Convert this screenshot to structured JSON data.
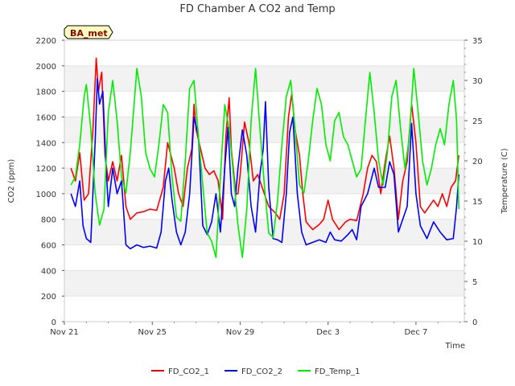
{
  "chart_data": {
    "type": "line",
    "title": "FD Chamber A CO2 and Temp",
    "xlabel": "Time",
    "ylabel_left": "CO2 (ppm)",
    "ylabel_right": "Temperature (C)",
    "site_label": "BA_met",
    "x_range_days": [
      0,
      18.2
    ],
    "x_ticks": [
      {
        "label": "Nov 21",
        "day": 0
      },
      {
        "label": "Nov 25",
        "day": 4
      },
      {
        "label": "Nov 29",
        "day": 8
      },
      {
        "label": "Dec 3",
        "day": 12
      },
      {
        "label": "Dec 7",
        "day": 16
      }
    ],
    "y_left_range": [
      0,
      2200
    ],
    "y_left_ticks": [
      0,
      200,
      400,
      600,
      800,
      1000,
      1200,
      1400,
      1600,
      1800,
      2000,
      2200
    ],
    "y_right_range": [
      0,
      35
    ],
    "y_right_ticks": [
      0,
      5,
      10,
      15,
      20,
      25,
      30,
      35
    ],
    "grid_bands": true,
    "legend_position": "bottom",
    "series": [
      {
        "name": "FD_CO2_1",
        "axis": "left",
        "color": "#ff0000",
        "points": [
          [
            0.3,
            1200
          ],
          [
            0.5,
            1100
          ],
          [
            0.7,
            1320
          ],
          [
            0.9,
            950
          ],
          [
            1.1,
            1000
          ],
          [
            1.3,
            1500
          ],
          [
            1.45,
            2060
          ],
          [
            1.55,
            1800
          ],
          [
            1.7,
            1950
          ],
          [
            1.85,
            1300
          ],
          [
            2.0,
            1100
          ],
          [
            2.2,
            1250
          ],
          [
            2.4,
            1100
          ],
          [
            2.6,
            1300
          ],
          [
            2.8,
            900
          ],
          [
            3.0,
            800
          ],
          [
            3.3,
            850
          ],
          [
            3.6,
            860
          ],
          [
            3.9,
            880
          ],
          [
            4.2,
            870
          ],
          [
            4.5,
            1050
          ],
          [
            4.7,
            1400
          ],
          [
            4.85,
            1300
          ],
          [
            5.0,
            1200
          ],
          [
            5.2,
            1000
          ],
          [
            5.4,
            900
          ],
          [
            5.6,
            1200
          ],
          [
            5.8,
            1350
          ],
          [
            5.9,
            1700
          ],
          [
            6.0,
            1500
          ],
          [
            6.2,
            1350
          ],
          [
            6.4,
            1200
          ],
          [
            6.6,
            1150
          ],
          [
            6.8,
            1180
          ],
          [
            7.0,
            1100
          ],
          [
            7.2,
            800
          ],
          [
            7.35,
            1450
          ],
          [
            7.5,
            1750
          ],
          [
            7.6,
            1350
          ],
          [
            7.8,
            1000
          ],
          [
            7.9,
            1000
          ],
          [
            8.0,
            1150
          ],
          [
            8.2,
            1560
          ],
          [
            8.4,
            1400
          ],
          [
            8.6,
            1100
          ],
          [
            8.8,
            1150
          ],
          [
            9.0,
            1050
          ],
          [
            9.3,
            900
          ],
          [
            9.6,
            850
          ],
          [
            9.8,
            800
          ],
          [
            10.0,
            1000
          ],
          [
            10.2,
            1600
          ],
          [
            10.35,
            1780
          ],
          [
            10.5,
            1500
          ],
          [
            10.7,
            1300
          ],
          [
            10.85,
            1000
          ],
          [
            11.0,
            780
          ],
          [
            11.3,
            720
          ],
          [
            11.6,
            760
          ],
          [
            11.8,
            800
          ],
          [
            12.0,
            950
          ],
          [
            12.2,
            800
          ],
          [
            12.5,
            720
          ],
          [
            12.8,
            780
          ],
          [
            13.0,
            800
          ],
          [
            13.3,
            790
          ],
          [
            13.6,
            1000
          ],
          [
            13.8,
            1200
          ],
          [
            14.0,
            1300
          ],
          [
            14.2,
            1250
          ],
          [
            14.4,
            1000
          ],
          [
            14.6,
            1250
          ],
          [
            14.8,
            1450
          ],
          [
            15.0,
            1200
          ],
          [
            15.2,
            800
          ],
          [
            15.4,
            1100
          ],
          [
            15.6,
            1250
          ],
          [
            15.8,
            1700
          ],
          [
            16.0,
            1400
          ],
          [
            16.2,
            900
          ],
          [
            16.4,
            850
          ],
          [
            16.6,
            900
          ],
          [
            16.8,
            950
          ],
          [
            17.0,
            900
          ],
          [
            17.2,
            1000
          ],
          [
            17.4,
            900
          ],
          [
            17.6,
            1050
          ],
          [
            17.8,
            1100
          ],
          [
            17.95,
            1300
          ]
        ]
      },
      {
        "name": "FD_CO2_2",
        "axis": "left",
        "color": "#0000ff",
        "points": [
          [
            0.3,
            1000
          ],
          [
            0.5,
            900
          ],
          [
            0.7,
            1100
          ],
          [
            0.85,
            750
          ],
          [
            1.0,
            650
          ],
          [
            1.2,
            620
          ],
          [
            1.4,
            1400
          ],
          [
            1.5,
            1900
          ],
          [
            1.6,
            1700
          ],
          [
            1.75,
            1800
          ],
          [
            1.9,
            1200
          ],
          [
            2.0,
            900
          ],
          [
            2.2,
            1200
          ],
          [
            2.4,
            1000
          ],
          [
            2.6,
            1100
          ],
          [
            2.8,
            600
          ],
          [
            3.0,
            570
          ],
          [
            3.3,
            600
          ],
          [
            3.6,
            580
          ],
          [
            3.9,
            590
          ],
          [
            4.2,
            575
          ],
          [
            4.4,
            700
          ],
          [
            4.6,
            1100
          ],
          [
            4.75,
            1200
          ],
          [
            4.9,
            950
          ],
          [
            5.1,
            700
          ],
          [
            5.3,
            600
          ],
          [
            5.5,
            700
          ],
          [
            5.7,
            1000
          ],
          [
            5.9,
            1600
          ],
          [
            6.1,
            1450
          ],
          [
            6.3,
            750
          ],
          [
            6.5,
            680
          ],
          [
            6.7,
            780
          ],
          [
            6.9,
            1000
          ],
          [
            7.1,
            700
          ],
          [
            7.3,
            1200
          ],
          [
            7.45,
            1520
          ],
          [
            7.6,
            1000
          ],
          [
            7.75,
            900
          ],
          [
            7.9,
            1200
          ],
          [
            8.1,
            1500
          ],
          [
            8.3,
            1300
          ],
          [
            8.5,
            900
          ],
          [
            8.7,
            700
          ],
          [
            8.9,
            1150
          ],
          [
            9.05,
            1350
          ],
          [
            9.15,
            1720
          ],
          [
            9.3,
            1050
          ],
          [
            9.5,
            650
          ],
          [
            9.7,
            640
          ],
          [
            9.9,
            620
          ],
          [
            10.1,
            1000
          ],
          [
            10.25,
            1480
          ],
          [
            10.4,
            1600
          ],
          [
            10.6,
            1000
          ],
          [
            10.8,
            700
          ],
          [
            11.0,
            600
          ],
          [
            11.3,
            620
          ],
          [
            11.6,
            640
          ],
          [
            11.9,
            620
          ],
          [
            12.1,
            700
          ],
          [
            12.3,
            640
          ],
          [
            12.6,
            630
          ],
          [
            12.9,
            680
          ],
          [
            13.1,
            720
          ],
          [
            13.3,
            640
          ],
          [
            13.5,
            900
          ],
          [
            13.8,
            1000
          ],
          [
            14.1,
            1200
          ],
          [
            14.3,
            1050
          ],
          [
            14.6,
            1050
          ],
          [
            14.8,
            1250
          ],
          [
            15.0,
            1150
          ],
          [
            15.2,
            700
          ],
          [
            15.4,
            800
          ],
          [
            15.6,
            900
          ],
          [
            15.8,
            1550
          ],
          [
            16.0,
            1000
          ],
          [
            16.2,
            750
          ],
          [
            16.5,
            650
          ],
          [
            16.8,
            780
          ],
          [
            17.1,
            700
          ],
          [
            17.4,
            640
          ],
          [
            17.7,
            650
          ],
          [
            17.85,
            900
          ],
          [
            17.95,
            1150
          ]
        ]
      },
      {
        "name": "FD_Temp_1",
        "axis": "right",
        "color": "#00ee00",
        "points": [
          [
            0.3,
            17
          ],
          [
            0.5,
            18
          ],
          [
            0.7,
            22
          ],
          [
            0.9,
            28
          ],
          [
            1.0,
            29.5
          ],
          [
            1.2,
            24
          ],
          [
            1.4,
            16
          ],
          [
            1.6,
            12
          ],
          [
            1.8,
            14
          ],
          [
            2.0,
            26
          ],
          [
            2.2,
            30
          ],
          [
            2.4,
            25
          ],
          [
            2.6,
            18
          ],
          [
            2.8,
            16
          ],
          [
            3.0,
            21
          ],
          [
            3.2,
            28
          ],
          [
            3.3,
            31.5
          ],
          [
            3.5,
            28
          ],
          [
            3.7,
            21
          ],
          [
            3.9,
            19
          ],
          [
            4.1,
            18
          ],
          [
            4.3,
            22
          ],
          [
            4.5,
            27
          ],
          [
            4.7,
            26
          ],
          [
            4.9,
            18
          ],
          [
            5.1,
            13
          ],
          [
            5.3,
            12.5
          ],
          [
            5.5,
            20
          ],
          [
            5.7,
            29
          ],
          [
            5.9,
            30
          ],
          [
            6.1,
            23
          ],
          [
            6.3,
            17
          ],
          [
            6.5,
            11
          ],
          [
            6.7,
            10
          ],
          [
            6.9,
            8
          ],
          [
            7.1,
            18
          ],
          [
            7.3,
            27
          ],
          [
            7.5,
            24
          ],
          [
            7.7,
            18
          ],
          [
            7.9,
            12
          ],
          [
            8.1,
            8
          ],
          [
            8.3,
            14
          ],
          [
            8.5,
            25
          ],
          [
            8.7,
            31.5
          ],
          [
            8.9,
            24
          ],
          [
            9.1,
            17
          ],
          [
            9.3,
            11
          ],
          [
            9.5,
            10.5
          ],
          [
            9.7,
            15
          ],
          [
            9.9,
            22
          ],
          [
            10.1,
            28
          ],
          [
            10.3,
            30
          ],
          [
            10.5,
            24
          ],
          [
            10.7,
            17
          ],
          [
            10.9,
            16
          ],
          [
            11.1,
            20
          ],
          [
            11.3,
            25
          ],
          [
            11.5,
            29
          ],
          [
            11.7,
            27
          ],
          [
            11.9,
            22
          ],
          [
            12.1,
            20
          ],
          [
            12.3,
            25
          ],
          [
            12.5,
            26
          ],
          [
            12.7,
            23
          ],
          [
            12.9,
            22
          ],
          [
            13.1,
            20
          ],
          [
            13.3,
            18
          ],
          [
            13.5,
            19
          ],
          [
            13.7,
            25
          ],
          [
            13.9,
            31
          ],
          [
            14.1,
            26
          ],
          [
            14.3,
            20
          ],
          [
            14.5,
            17
          ],
          [
            14.7,
            21
          ],
          [
            14.9,
            28
          ],
          [
            15.1,
            30
          ],
          [
            15.3,
            24
          ],
          [
            15.5,
            19
          ],
          [
            15.7,
            23
          ],
          [
            15.9,
            31.5
          ],
          [
            16.1,
            26
          ],
          [
            16.3,
            20
          ],
          [
            16.5,
            17
          ],
          [
            16.7,
            19
          ],
          [
            16.9,
            22
          ],
          [
            17.1,
            24
          ],
          [
            17.3,
            22
          ],
          [
            17.5,
            27
          ],
          [
            17.7,
            30
          ],
          [
            17.85,
            25
          ],
          [
            17.95,
            14
          ]
        ]
      }
    ]
  }
}
